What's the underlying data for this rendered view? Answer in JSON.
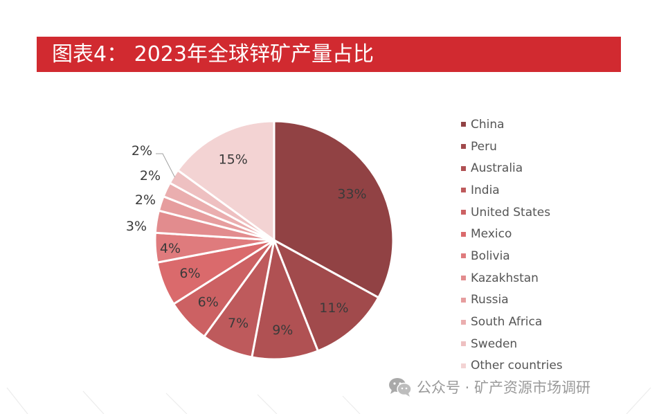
{
  "title": "图表4：  2023年全球锌矿产量占比",
  "watermark": {
    "icon": "wechat-icon",
    "text": "公众号 · 矿产资源市场调研"
  },
  "chart_data": {
    "type": "pie",
    "title": "图表4：  2023年全球锌矿产量占比",
    "unit": "%",
    "legend_position": "right",
    "slices": [
      {
        "label": "China",
        "value": 33,
        "data_label": "33%",
        "color": "#914244"
      },
      {
        "label": "Peru",
        "value": 11,
        "data_label": "11%",
        "color": "#a14a4c"
      },
      {
        "label": "Australia",
        "value": 9,
        "data_label": "9%",
        "color": "#b05153"
      },
      {
        "label": "India",
        "value": 7,
        "data_label": "7%",
        "color": "#be5a5c"
      },
      {
        "label": "United States",
        "value": 6,
        "data_label": "6%",
        "color": "#cc6163"
      },
      {
        "label": "Mexico",
        "value": 6,
        "data_label": "6%",
        "color": "#da6a6c"
      },
      {
        "label": "Bolivia",
        "value": 4,
        "data_label": "4%",
        "color": "#df7b7d"
      },
      {
        "label": "Kazakhstan",
        "value": 3,
        "data_label": "3%",
        "color": "#e28c8e"
      },
      {
        "label": "Russia",
        "value": 2,
        "data_label": "2%",
        "color": "#e69d9e"
      },
      {
        "label": "South Africa",
        "value": 2,
        "data_label": "2%",
        "color": "#eaaeaf"
      },
      {
        "label": "Sweden",
        "value": 2,
        "data_label": "2%",
        "color": "#eec0c1"
      },
      {
        "label": "Other countries",
        "value": 15,
        "data_label": "15%",
        "color": "#f3d3d3"
      }
    ]
  }
}
